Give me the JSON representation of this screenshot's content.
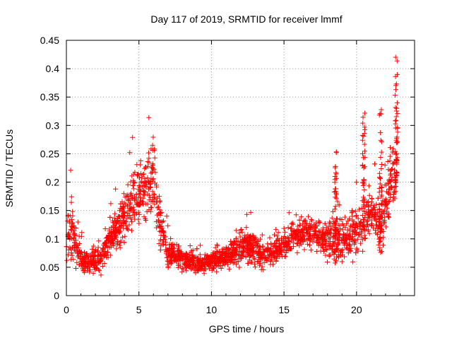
{
  "chart_data": {
    "type": "scatter",
    "title": "Day 117 of 2019, SRMTID for receiver lmmf",
    "xlabel": "GPS time / hours",
    "ylabel": "SRMTID / TECUs",
    "xlim": [
      0,
      24
    ],
    "ylim": [
      0,
      0.45
    ],
    "xticks": [
      0,
      5,
      10,
      15,
      20
    ],
    "xtick_labels": [
      "0",
      "5",
      "10",
      "15",
      "20"
    ],
    "yticks": [
      0,
      0.05,
      0.1,
      0.15,
      0.2,
      0.25,
      0.3,
      0.35,
      0.4,
      0.45
    ],
    "ytick_labels": [
      "0",
      "0.05",
      "0.1",
      "0.15",
      "0.2",
      "0.25",
      "0.3",
      "0.35",
      "0.4",
      "0.45"
    ],
    "grid": true,
    "marker": "plus",
    "point_color": "#ff0000",
    "approx_point_count": 2200,
    "series": [
      {
        "name": "SRMTID",
        "profile": [
          {
            "t": 0.0,
            "mean": 0.11,
            "spread": 0.045
          },
          {
            "t": 0.3,
            "mean": 0.115,
            "spread": 0.05
          },
          {
            "t": 0.7,
            "mean": 0.085,
            "spread": 0.035
          },
          {
            "t": 1.2,
            "mean": 0.058,
            "spread": 0.018
          },
          {
            "t": 2.0,
            "mean": 0.062,
            "spread": 0.02
          },
          {
            "t": 2.5,
            "mean": 0.07,
            "spread": 0.025
          },
          {
            "t": 3.0,
            "mean": 0.1,
            "spread": 0.03
          },
          {
            "t": 3.5,
            "mean": 0.12,
            "spread": 0.035
          },
          {
            "t": 4.0,
            "mean": 0.14,
            "spread": 0.04
          },
          {
            "t": 4.5,
            "mean": 0.17,
            "spread": 0.05
          },
          {
            "t": 5.0,
            "mean": 0.18,
            "spread": 0.05
          },
          {
            "t": 5.5,
            "mean": 0.19,
            "spread": 0.05
          },
          {
            "t": 6.0,
            "mean": 0.21,
            "spread": 0.06
          },
          {
            "t": 6.5,
            "mean": 0.12,
            "spread": 0.04
          },
          {
            "t": 7.0,
            "mean": 0.075,
            "spread": 0.02
          },
          {
            "t": 8.0,
            "mean": 0.065,
            "spread": 0.017
          },
          {
            "t": 9.0,
            "mean": 0.055,
            "spread": 0.015
          },
          {
            "t": 10.0,
            "mean": 0.062,
            "spread": 0.016
          },
          {
            "t": 11.0,
            "mean": 0.068,
            "spread": 0.018
          },
          {
            "t": 12.0,
            "mean": 0.08,
            "spread": 0.025
          },
          {
            "t": 12.7,
            "mean": 0.09,
            "spread": 0.03
          },
          {
            "t": 13.5,
            "mean": 0.07,
            "spread": 0.018
          },
          {
            "t": 14.5,
            "mean": 0.08,
            "spread": 0.02
          },
          {
            "t": 15.5,
            "mean": 0.1,
            "spread": 0.025
          },
          {
            "t": 16.5,
            "mean": 0.11,
            "spread": 0.025
          },
          {
            "t": 17.5,
            "mean": 0.105,
            "spread": 0.025
          },
          {
            "t": 18.5,
            "mean": 0.1,
            "spread": 0.04
          },
          {
            "t": 19.5,
            "mean": 0.1,
            "spread": 0.03
          },
          {
            "t": 20.5,
            "mean": 0.13,
            "spread": 0.05
          },
          {
            "t": 21.0,
            "mean": 0.15,
            "spread": 0.03
          },
          {
            "t": 21.8,
            "mean": 0.12,
            "spread": 0.04
          },
          {
            "t": 22.3,
            "mean": 0.2,
            "spread": 0.05
          },
          {
            "t": 22.8,
            "mean": 0.22,
            "spread": 0.06
          }
        ],
        "spikes": [
          {
            "t": 18.55,
            "y_min": 0.05,
            "y_max": 0.26
          },
          {
            "t": 20.5,
            "y_min": 0.11,
            "y_max": 0.325
          },
          {
            "t": 21.65,
            "y_min": 0.07,
            "y_max": 0.33
          },
          {
            "t": 22.75,
            "y_min": 0.2,
            "y_max": 0.425
          }
        ]
      }
    ]
  }
}
